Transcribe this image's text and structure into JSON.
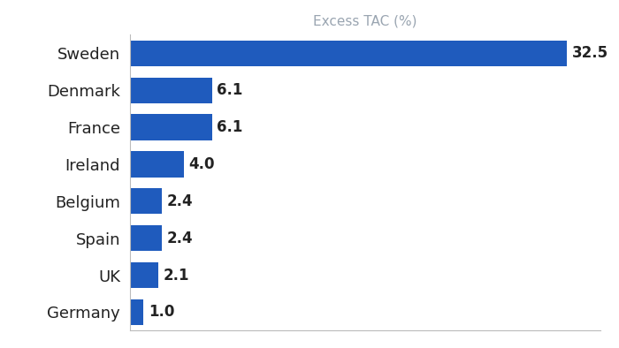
{
  "chart_data": {
    "type": "bar",
    "orientation": "horizontal",
    "xlabel": "Excess TAC (%)",
    "categories": [
      "Sweden",
      "Denmark",
      "France",
      "Ireland",
      "Belgium",
      "Spain",
      "UK",
      "Germany"
    ],
    "values": [
      32.5,
      6.1,
      6.1,
      4.0,
      2.4,
      2.4,
      2.1,
      1.0
    ],
    "color": "#1f5bbd",
    "xlim": [
      0,
      35
    ],
    "xticks": [],
    "grid": false,
    "data_labels": true,
    "tick_labels": "y"
  }
}
